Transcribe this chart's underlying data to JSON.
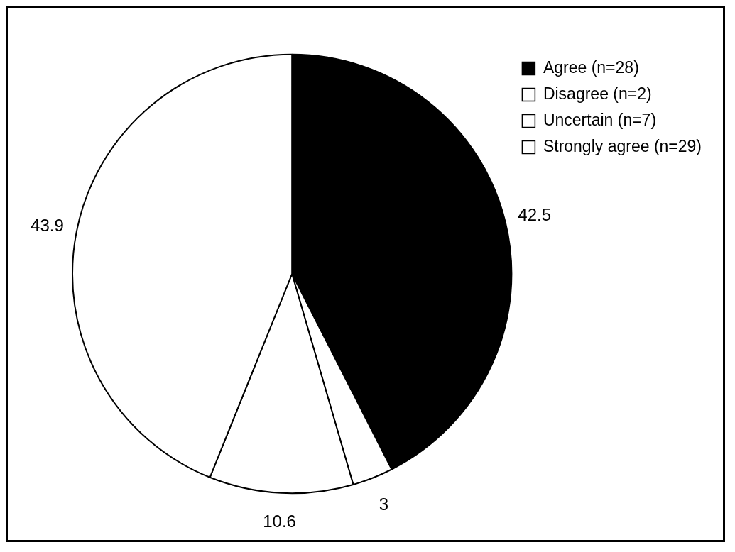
{
  "chart_data": {
    "type": "pie",
    "categories": [
      "Agree (n=28)",
      "Disagree (n=2)",
      "Uncertain (n=7)",
      "Strongly agree (n=29)"
    ],
    "values": [
      42.5,
      3,
      10.6,
      43.9
    ],
    "colors": [
      "#000000",
      "#ffffff",
      "#ffffff",
      "#ffffff"
    ],
    "data_labels": true,
    "legend": "top right"
  }
}
